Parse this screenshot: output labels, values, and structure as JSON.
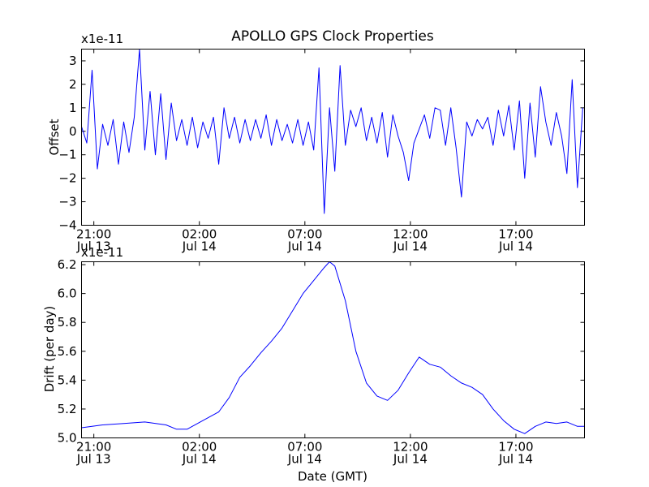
{
  "chart_data": [
    {
      "type": "line",
      "title": "APOLLO GPS Clock Properties",
      "ylabel": "Offset",
      "xlabel": "",
      "y_scale_label": "x1e-11",
      "x_ticks": [
        {
          "date": "2014-07-13T21:00",
          "time": "21:00",
          "day": "Jul 13"
        },
        {
          "date": "2014-07-14T02:00",
          "time": "02:00",
          "day": "Jul 14"
        },
        {
          "date": "2014-07-14T07:00",
          "time": "07:00",
          "day": "Jul 14"
        },
        {
          "date": "2014-07-14T12:00",
          "time": "12:00",
          "day": "Jul 14"
        },
        {
          "date": "2014-07-14T17:00",
          "time": "17:00",
          "day": "Jul 14"
        }
      ],
      "xlim": [
        "2014-07-13T20:25",
        "2014-07-14T20:15"
      ],
      "ylim": [
        -4,
        3.5
      ],
      "y_ticks": [
        -4,
        -3,
        -2,
        -1,
        0,
        1,
        2,
        3
      ],
      "y_tick_labels": [
        "−4",
        "−3",
        "−2",
        "−1",
        "0",
        "1",
        "2",
        "3"
      ],
      "grid": false,
      "series_color": "#0000ff",
      "series": [
        {
          "x": [
            "2014-07-13T20:25",
            "2014-07-13T20:40",
            "2014-07-13T20:55",
            "2014-07-13T21:10",
            "2014-07-13T21:25",
            "2014-07-13T21:40",
            "2014-07-13T21:55",
            "2014-07-13T22:10",
            "2014-07-13T22:25",
            "2014-07-13T22:40",
            "2014-07-13T22:55",
            "2014-07-13T23:10",
            "2014-07-13T23:25",
            "2014-07-13T23:40",
            "2014-07-13T23:55",
            "2014-07-14T00:10",
            "2014-07-14T00:25",
            "2014-07-14T00:40",
            "2014-07-14T00:55",
            "2014-07-14T01:10",
            "2014-07-14T01:25",
            "2014-07-14T01:40",
            "2014-07-14T01:55",
            "2014-07-14T02:10",
            "2014-07-14T02:25",
            "2014-07-14T02:40",
            "2014-07-14T02:55",
            "2014-07-14T03:10",
            "2014-07-14T03:25",
            "2014-07-14T03:40",
            "2014-07-14T03:55",
            "2014-07-14T04:10",
            "2014-07-14T04:25",
            "2014-07-14T04:40",
            "2014-07-14T04:55",
            "2014-07-14T05:10",
            "2014-07-14T05:25",
            "2014-07-14T05:40",
            "2014-07-14T05:55",
            "2014-07-14T06:10",
            "2014-07-14T06:25",
            "2014-07-14T06:40",
            "2014-07-14T06:55",
            "2014-07-14T07:10",
            "2014-07-14T07:25",
            "2014-07-14T07:40",
            "2014-07-14T07:55",
            "2014-07-14T08:10",
            "2014-07-14T08:25",
            "2014-07-14T08:40",
            "2014-07-14T08:55",
            "2014-07-14T09:10",
            "2014-07-14T09:25",
            "2014-07-14T09:40",
            "2014-07-14T09:55",
            "2014-07-14T10:10",
            "2014-07-14T10:25",
            "2014-07-14T10:40",
            "2014-07-14T10:55",
            "2014-07-14T11:10",
            "2014-07-14T11:25",
            "2014-07-14T11:40",
            "2014-07-14T11:55",
            "2014-07-14T12:10",
            "2014-07-14T12:25",
            "2014-07-14T12:40",
            "2014-07-14T12:55",
            "2014-07-14T13:10",
            "2014-07-14T13:25",
            "2014-07-14T13:40",
            "2014-07-14T13:55",
            "2014-07-14T14:10",
            "2014-07-14T14:25",
            "2014-07-14T14:40",
            "2014-07-14T14:55",
            "2014-07-14T15:10",
            "2014-07-14T15:25",
            "2014-07-14T15:40",
            "2014-07-14T15:55",
            "2014-07-14T16:10",
            "2014-07-14T16:25",
            "2014-07-14T16:40",
            "2014-07-14T16:55",
            "2014-07-14T17:10",
            "2014-07-14T17:25",
            "2014-07-14T17:40",
            "2014-07-14T17:55",
            "2014-07-14T18:10",
            "2014-07-14T18:25",
            "2014-07-14T18:40",
            "2014-07-14T18:55",
            "2014-07-14T19:10",
            "2014-07-14T19:25",
            "2014-07-14T19:40",
            "2014-07-14T19:55",
            "2014-07-14T20:10"
          ],
          "values": [
            0.2,
            -0.5,
            2.6,
            -1.6,
            0.3,
            -0.6,
            0.5,
            -1.4,
            0.4,
            -0.9,
            0.6,
            3.5,
            -0.8,
            1.7,
            -1.0,
            1.6,
            -1.2,
            1.2,
            -0.4,
            0.5,
            -0.6,
            0.6,
            -0.7,
            0.4,
            -0.3,
            0.6,
            -1.4,
            1.0,
            -0.3,
            0.6,
            -0.5,
            0.5,
            -0.4,
            0.5,
            -0.3,
            0.7,
            -0.6,
            0.5,
            -0.4,
            0.3,
            -0.5,
            0.5,
            -0.6,
            0.4,
            -0.8,
            2.7,
            -3.5,
            1.0,
            -1.7,
            2.8,
            -0.6,
            0.9,
            0.2,
            1.0,
            -0.4,
            0.6,
            -0.5,
            0.8,
            -1.1,
            0.7,
            -0.2,
            -0.9,
            -2.1,
            -0.5,
            0.1,
            0.7,
            -0.3,
            1.0,
            0.9,
            -0.6,
            1.0,
            -0.7,
            -2.8,
            0.4,
            -0.2,
            0.5,
            0.1,
            0.6,
            -0.6,
            0.9,
            -0.2,
            1.1,
            -0.8,
            1.3,
            -2.0,
            1.2,
            -1.1,
            1.9,
            0.4,
            -0.6,
            0.8,
            -0.2,
            -1.8,
            2.2,
            -2.4,
            1.0
          ]
        }
      ]
    },
    {
      "type": "line",
      "title": "",
      "ylabel": "Drift (per day)",
      "xlabel": "Date (GMT)",
      "y_scale_label": "x1e-11",
      "x_ticks": [
        {
          "date": "2014-07-13T21:00",
          "time": "21:00",
          "day": "Jul 13"
        },
        {
          "date": "2014-07-14T02:00",
          "time": "02:00",
          "day": "Jul 14"
        },
        {
          "date": "2014-07-14T07:00",
          "time": "07:00",
          "day": "Jul 14"
        },
        {
          "date": "2014-07-14T12:00",
          "time": "12:00",
          "day": "Jul 14"
        },
        {
          "date": "2014-07-14T17:00",
          "time": "17:00",
          "day": "Jul 14"
        }
      ],
      "xlim": [
        "2014-07-13T20:25",
        "2014-07-14T20:15"
      ],
      "ylim": [
        5.0,
        6.22
      ],
      "y_ticks": [
        5.0,
        5.2,
        5.4,
        5.6,
        5.8,
        6.0,
        6.2
      ],
      "y_tick_labels": [
        "5.0",
        "5.2",
        "5.4",
        "5.6",
        "5.8",
        "6.0",
        "6.2"
      ],
      "grid": false,
      "series_color": "#0000ff",
      "series": [
        {
          "x": [
            "2014-07-13T20:25",
            "2014-07-13T21:25",
            "2014-07-13T22:25",
            "2014-07-13T23:25",
            "2014-07-14T00:25",
            "2014-07-14T00:55",
            "2014-07-14T01:25",
            "2014-07-14T01:55",
            "2014-07-14T02:25",
            "2014-07-14T02:55",
            "2014-07-14T03:25",
            "2014-07-14T03:55",
            "2014-07-14T04:25",
            "2014-07-14T04:55",
            "2014-07-14T05:25",
            "2014-07-14T05:55",
            "2014-07-14T06:25",
            "2014-07-14T06:55",
            "2014-07-14T07:25",
            "2014-07-14T07:55",
            "2014-07-14T08:10",
            "2014-07-14T08:25",
            "2014-07-14T08:55",
            "2014-07-14T09:25",
            "2014-07-14T09:55",
            "2014-07-14T10:25",
            "2014-07-14T10:55",
            "2014-07-14T11:25",
            "2014-07-14T11:55",
            "2014-07-14T12:25",
            "2014-07-14T12:55",
            "2014-07-14T13:25",
            "2014-07-14T13:55",
            "2014-07-14T14:25",
            "2014-07-14T14:55",
            "2014-07-14T15:25",
            "2014-07-14T15:55",
            "2014-07-14T16:25",
            "2014-07-14T16:55",
            "2014-07-14T17:25",
            "2014-07-14T17:55",
            "2014-07-14T18:25",
            "2014-07-14T18:55",
            "2014-07-14T19:25",
            "2014-07-14T19:55",
            "2014-07-14T20:15"
          ],
          "values": [
            5.07,
            5.09,
            5.1,
            5.11,
            5.09,
            5.06,
            5.06,
            5.1,
            5.14,
            5.18,
            5.28,
            5.42,
            5.5,
            5.59,
            5.67,
            5.76,
            5.88,
            6.0,
            6.09,
            6.18,
            6.22,
            6.19,
            5.95,
            5.6,
            5.38,
            5.29,
            5.26,
            5.33,
            5.45,
            5.56,
            5.51,
            5.49,
            5.43,
            5.38,
            5.35,
            5.3,
            5.2,
            5.12,
            5.06,
            5.03,
            5.08,
            5.11,
            5.1,
            5.11,
            5.08,
            5.08
          ]
        }
      ]
    }
  ]
}
